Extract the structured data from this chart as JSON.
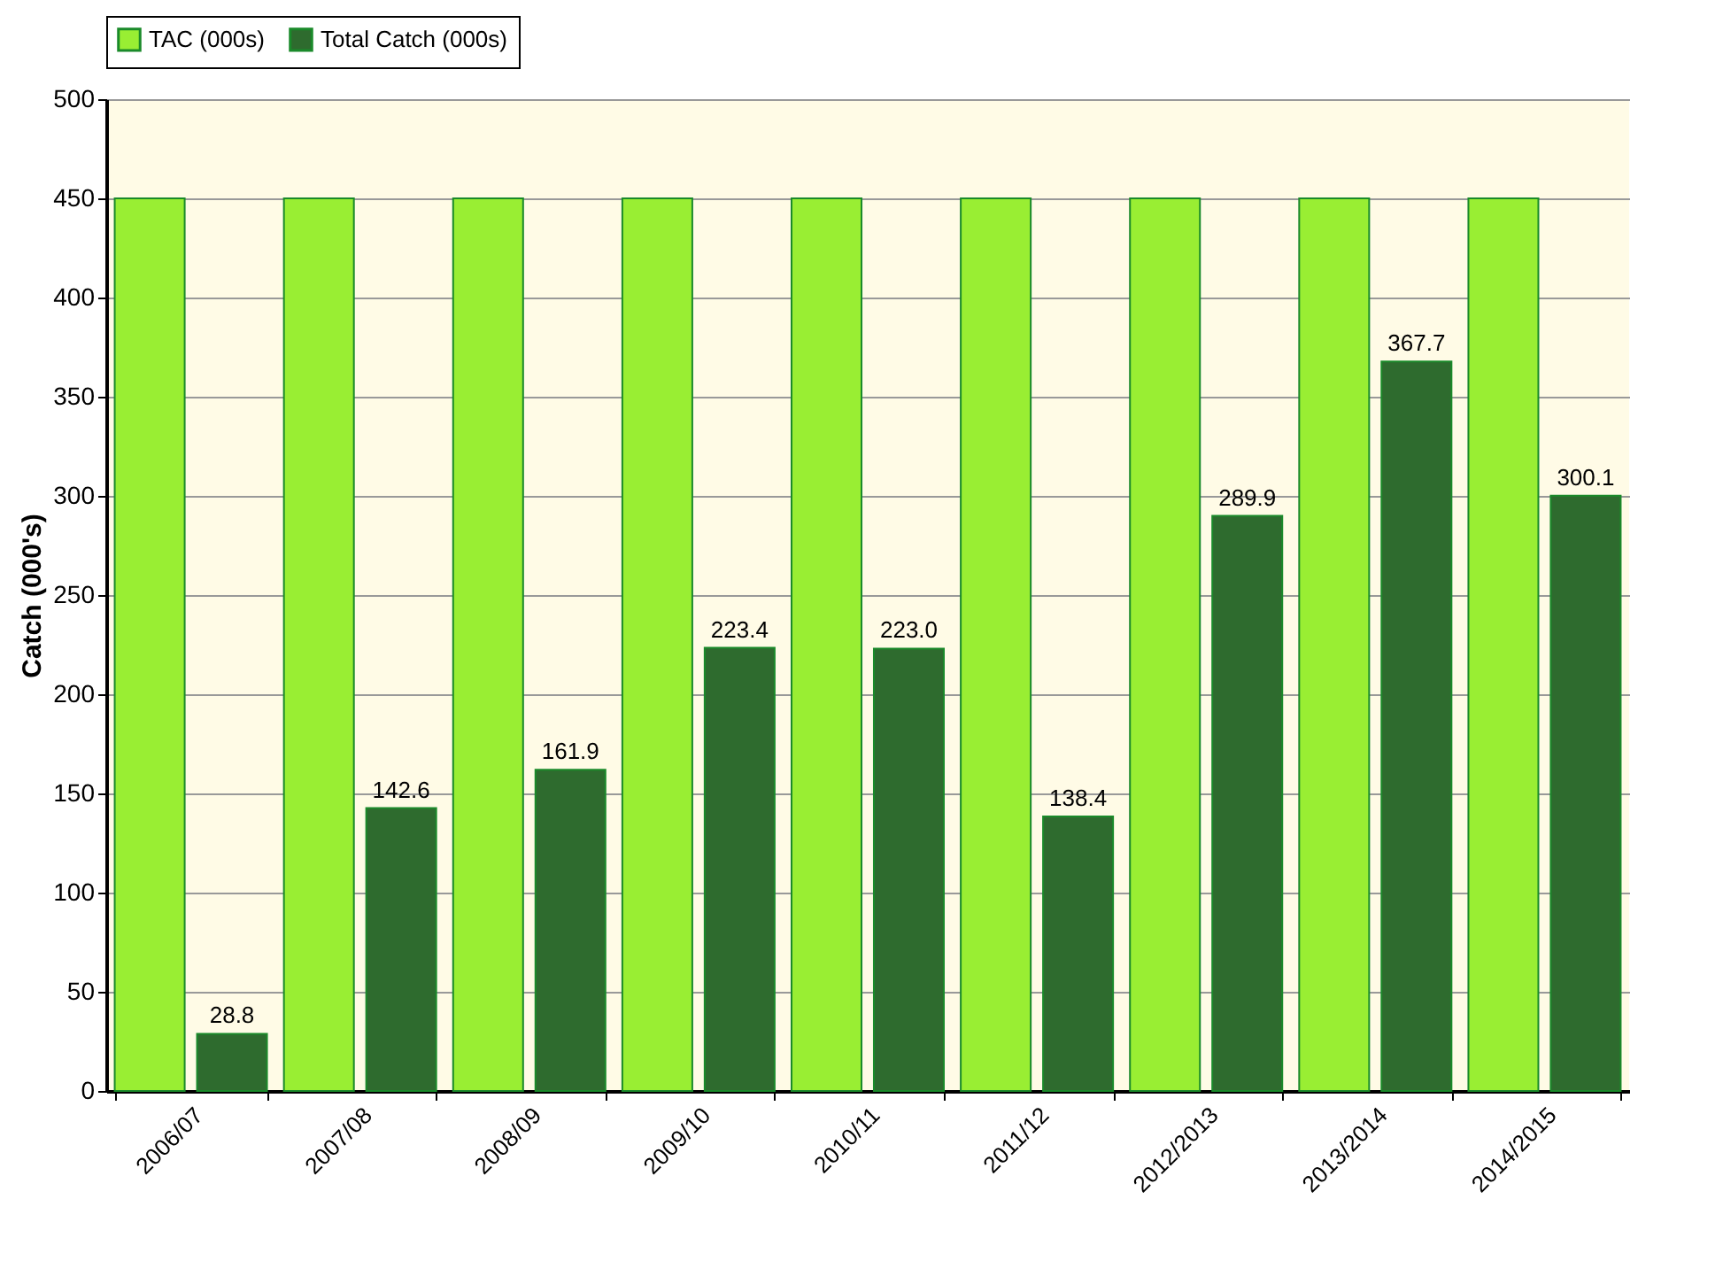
{
  "chart_data": {
    "type": "bar",
    "ylabel": "Catch (000's)",
    "categories": [
      "2006/07",
      "2007/08",
      "2008/09",
      "2009/10",
      "2010/11",
      "2011/12",
      "2012/2013",
      "2013/2014",
      "2014/2015"
    ],
    "series": [
      {
        "name": "TAC (000s)",
        "color": "#99ee33",
        "values": [
          450,
          450,
          450,
          450,
          450,
          450,
          450,
          450,
          450
        ]
      },
      {
        "name": "Total Catch (000s)",
        "color": "#2e6b2e",
        "values": [
          28.8,
          142.6,
          161.9,
          223.4,
          223.0,
          138.4,
          289.9,
          367.7,
          300.1
        ],
        "value_labels": [
          "28.8",
          "142.6",
          "161.9",
          "223.4",
          "223.0",
          "138.4",
          "289.9",
          "367.7",
          "300.1"
        ]
      }
    ],
    "ylim": [
      0,
      500
    ],
    "yticks": [
      0,
      50,
      100,
      150,
      200,
      250,
      300,
      350,
      400,
      450,
      500
    ],
    "grid": "y",
    "legend": "top"
  }
}
